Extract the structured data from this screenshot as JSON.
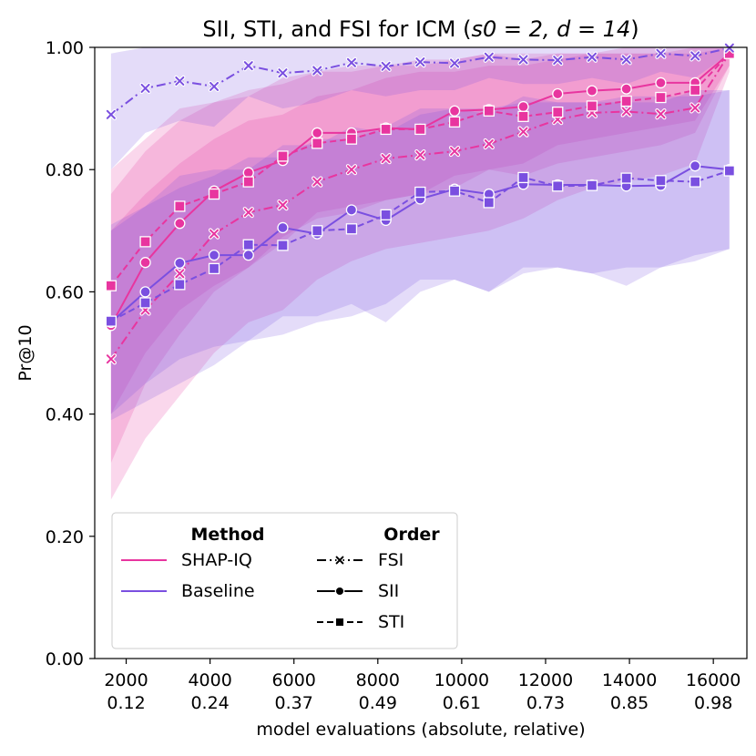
{
  "chart_data": {
    "type": "line",
    "title_text": "SII, STI, and FSI for ICM (",
    "title_math": "s0 = 2, d = 14",
    "title_suffix": ")",
    "xlabel": "model evaluations (absolute, relative)",
    "ylabel": "Pr@10",
    "xlim": [
      1250,
      16800
    ],
    "ylim": [
      0,
      1
    ],
    "x_ticks": [
      {
        "value": 2000,
        "abs": "2000",
        "rel": "0.12"
      },
      {
        "value": 4000,
        "abs": "4000",
        "rel": "0.24"
      },
      {
        "value": 6000,
        "abs": "6000",
        "rel": "0.37"
      },
      {
        "value": 8000,
        "abs": "8000",
        "rel": "0.49"
      },
      {
        "value": 10000,
        "abs": "10000",
        "rel": "0.61"
      },
      {
        "value": 12000,
        "abs": "12000",
        "rel": "0.73"
      },
      {
        "value": 14000,
        "abs": "14000",
        "rel": "0.85"
      },
      {
        "value": 16000,
        "abs": "16000",
        "rel": "0.98"
      }
    ],
    "y_ticks": [
      "0.00",
      "0.20",
      "0.40",
      "0.60",
      "0.80",
      "1.00"
    ],
    "y_tick_values": [
      0,
      0.2,
      0.4,
      0.6,
      0.8,
      1.0
    ],
    "x": [
      1638,
      2457,
      3277,
      4096,
      4915,
      5734,
      6554,
      7373,
      8192,
      9011,
      9830,
      10650,
      11469,
      12288,
      13107,
      13926,
      14746,
      15565,
      16384
    ],
    "colors": {
      "shapiq": "#e8359f",
      "baseline": "#7a4fe0"
    },
    "series": [
      {
        "name": "SHAP-IQ FSI",
        "method": "shapiq",
        "order": "FSI",
        "marker": "x",
        "dash": "dashdot",
        "values": [
          0.49,
          0.57,
          0.63,
          0.695,
          0.73,
          0.742,
          0.78,
          0.8,
          0.818,
          0.824,
          0.83,
          0.842,
          0.862,
          0.882,
          0.893,
          0.895,
          0.891,
          0.901,
          0.99
        ],
        "lower": [
          0.26,
          0.36,
          0.43,
          0.5,
          0.55,
          0.57,
          0.62,
          0.65,
          0.67,
          0.68,
          0.69,
          0.7,
          0.72,
          0.75,
          0.77,
          0.78,
          0.79,
          0.81,
          0.96
        ],
        "upper": [
          0.7,
          0.76,
          0.81,
          0.85,
          0.88,
          0.89,
          0.92,
          0.93,
          0.95,
          0.96,
          0.96,
          0.97,
          0.97,
          0.98,
          0.99,
          0.99,
          0.99,
          0.99,
          1.0
        ]
      },
      {
        "name": "SHAP-IQ SII",
        "method": "shapiq",
        "order": "SII",
        "marker": "o",
        "dash": "solid",
        "values": [
          0.545,
          0.648,
          0.712,
          0.765,
          0.795,
          0.815,
          0.86,
          0.86,
          0.868,
          0.866,
          0.896,
          0.898,
          0.903,
          0.924,
          0.929,
          0.932,
          0.942,
          0.942,
          0.99
        ],
        "lower": [
          0.32,
          0.45,
          0.53,
          0.6,
          0.64,
          0.68,
          0.73,
          0.74,
          0.75,
          0.76,
          0.79,
          0.8,
          0.81,
          0.84,
          0.85,
          0.86,
          0.87,
          0.88,
          0.97
        ],
        "upper": [
          0.76,
          0.83,
          0.88,
          0.91,
          0.93,
          0.94,
          0.96,
          0.97,
          0.97,
          0.98,
          0.98,
          0.99,
          0.99,
          0.99,
          0.99,
          1.0,
          1.0,
          1.0,
          1.0
        ]
      },
      {
        "name": "SHAP-IQ STI",
        "method": "shapiq",
        "order": "STI",
        "marker": "s",
        "dash": "dashed",
        "values": [
          0.61,
          0.682,
          0.74,
          0.76,
          0.78,
          0.822,
          0.843,
          0.85,
          0.866,
          0.866,
          0.878,
          0.896,
          0.887,
          0.894,
          0.904,
          0.912,
          0.918,
          0.93,
          0.99
        ],
        "lower": [
          0.4,
          0.5,
          0.57,
          0.61,
          0.64,
          0.69,
          0.72,
          0.73,
          0.75,
          0.76,
          0.77,
          0.8,
          0.79,
          0.81,
          0.82,
          0.83,
          0.84,
          0.86,
          0.97
        ],
        "upper": [
          0.8,
          0.85,
          0.9,
          0.91,
          0.92,
          0.95,
          0.96,
          0.96,
          0.97,
          0.97,
          0.98,
          0.99,
          0.98,
          0.99,
          0.99,
          0.99,
          0.99,
          1.0,
          1.0
        ]
      },
      {
        "name": "Baseline FSI",
        "method": "baseline",
        "order": "FSI",
        "marker": "x",
        "dash": "dashdot",
        "values": [
          0.89,
          0.933,
          0.945,
          0.936,
          0.97,
          0.958,
          0.962,
          0.975,
          0.969,
          0.976,
          0.974,
          0.984,
          0.98,
          0.979,
          0.984,
          0.98,
          0.99,
          0.986,
          0.999
        ],
        "lower": [
          0.8,
          0.86,
          0.88,
          0.87,
          0.92,
          0.9,
          0.91,
          0.93,
          0.92,
          0.93,
          0.93,
          0.95,
          0.94,
          0.94,
          0.95,
          0.94,
          0.96,
          0.95,
          0.99
        ],
        "upper": [
          0.99,
          1.0,
          1.0,
          1.0,
          1.0,
          1.0,
          1.0,
          1.0,
          1.0,
          1.0,
          1.0,
          1.0,
          1.0,
          1.0,
          1.0,
          1.0,
          1.0,
          1.0,
          1.0
        ]
      },
      {
        "name": "Baseline SII",
        "method": "baseline",
        "order": "SII",
        "marker": "o",
        "dash": "solid",
        "values": [
          0.55,
          0.6,
          0.647,
          0.66,
          0.66,
          0.705,
          0.695,
          0.734,
          0.717,
          0.752,
          0.768,
          0.76,
          0.776,
          0.775,
          0.775,
          0.773,
          0.774,
          0.806,
          0.8
        ],
        "lower": [
          0.4,
          0.45,
          0.49,
          0.51,
          0.52,
          0.56,
          0.56,
          0.58,
          0.55,
          0.6,
          0.62,
          0.6,
          0.63,
          0.64,
          0.63,
          0.61,
          0.64,
          0.66,
          0.67
        ],
        "upper": [
          0.7,
          0.74,
          0.79,
          0.8,
          0.8,
          0.84,
          0.84,
          0.87,
          0.86,
          0.89,
          0.9,
          0.9,
          0.91,
          0.91,
          0.91,
          0.91,
          0.91,
          0.93,
          0.93
        ]
      },
      {
        "name": "Baseline STI",
        "method": "baseline",
        "order": "STI",
        "marker": "s",
        "dash": "dashed",
        "values": [
          0.552,
          0.582,
          0.612,
          0.638,
          0.677,
          0.676,
          0.7,
          0.703,
          0.726,
          0.763,
          0.765,
          0.746,
          0.787,
          0.773,
          0.774,
          0.786,
          0.782,
          0.78,
          0.798
        ],
        "lower": [
          0.39,
          0.42,
          0.45,
          0.48,
          0.52,
          0.53,
          0.55,
          0.56,
          0.58,
          0.62,
          0.62,
          0.6,
          0.64,
          0.64,
          0.63,
          0.64,
          0.64,
          0.65,
          0.67
        ],
        "upper": [
          0.71,
          0.74,
          0.77,
          0.79,
          0.82,
          0.82,
          0.85,
          0.85,
          0.87,
          0.9,
          0.9,
          0.89,
          0.92,
          0.91,
          0.91,
          0.92,
          0.92,
          0.92,
          0.93
        ]
      }
    ],
    "legend": {
      "placement": "lower-left",
      "method_title": "Method",
      "order_title": "Order",
      "methods": [
        {
          "key": "shapiq",
          "label": "SHAP-IQ"
        },
        {
          "key": "baseline",
          "label": "Baseline"
        }
      ],
      "orders": [
        {
          "key": "FSI",
          "label": "FSI",
          "marker": "x",
          "dash": "dashdot"
        },
        {
          "key": "SII",
          "label": "SII",
          "marker": "o",
          "dash": "solid"
        },
        {
          "key": "STI",
          "label": "STI",
          "marker": "s",
          "dash": "dashed"
        }
      ]
    }
  }
}
